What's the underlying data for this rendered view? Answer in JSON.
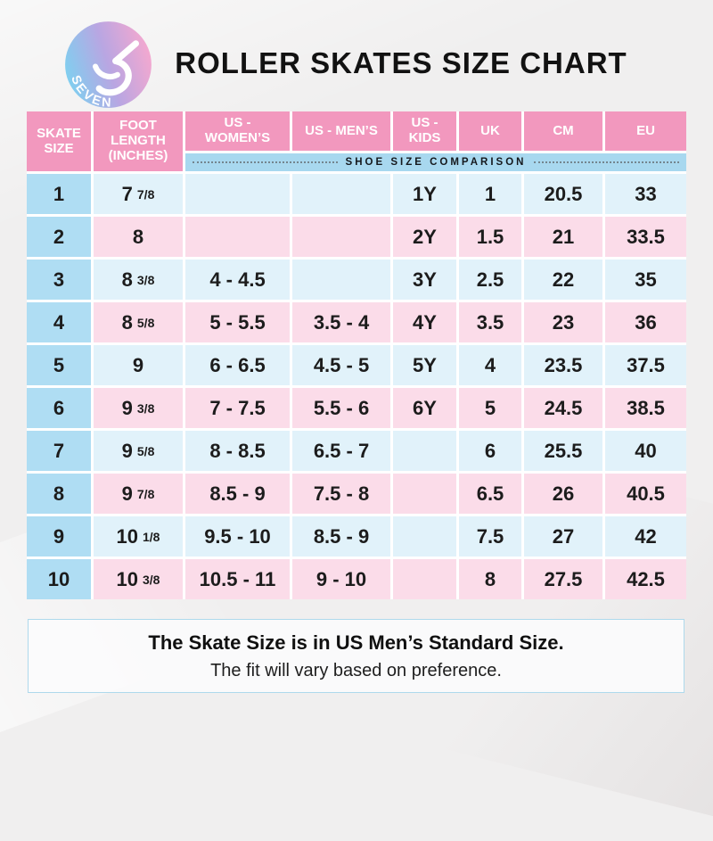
{
  "brand": {
    "logo_text": "SEVEN"
  },
  "header": {
    "title": "ROLLER SKATES SIZE CHART"
  },
  "chart_data": {
    "type": "table",
    "title": "ROLLER SKATES SIZE CHART",
    "columns": [
      "SKATE SIZE",
      "FOOT LENGTH (INCHES)",
      "US - WOMEN’S",
      "US - MEN’S",
      "US - KIDS",
      "UK",
      "CM",
      "EU"
    ],
    "comparison_label": "SHOE SIZE COMPARISON",
    "rows": [
      [
        "1",
        "7 7/8",
        "",
        "",
        "1Y",
        "1",
        "20.5",
        "33"
      ],
      [
        "2",
        "8",
        "",
        "",
        "2Y",
        "1.5",
        "21",
        "33.5"
      ],
      [
        "3",
        "8 3/8",
        "4 - 4.5",
        "",
        "3Y",
        "2.5",
        "22",
        "35"
      ],
      [
        "4",
        "8 5/8",
        "5 - 5.5",
        "3.5 - 4",
        "4Y",
        "3.5",
        "23",
        "36"
      ],
      [
        "5",
        "9",
        "6 - 6.5",
        "4.5 - 5",
        "5Y",
        "4",
        "23.5",
        "37.5"
      ],
      [
        "6",
        "9 3/8",
        "7 - 7.5",
        "5.5 - 6",
        "6Y",
        "5",
        "24.5",
        "38.5"
      ],
      [
        "7",
        "9 5/8",
        "8 - 8.5",
        "6.5 - 7",
        "",
        "6",
        "25.5",
        "40"
      ],
      [
        "8",
        "9 7/8",
        "8.5 - 9",
        "7.5 - 8",
        "",
        "6.5",
        "26",
        "40.5"
      ],
      [
        "9",
        "10 1/8",
        "9.5 - 10",
        "8.5 - 9",
        "",
        "7.5",
        "27",
        "42"
      ],
      [
        "10",
        "10 3/8",
        "10.5 - 11",
        "9 - 10",
        "",
        "8",
        "27.5",
        "42.5"
      ]
    ]
  },
  "footer": {
    "line1": "The Skate Size is in US Men’s Standard Size.",
    "line2": "The fit will vary based on preference."
  },
  "colors": {
    "header_pink": "#F298BE",
    "row_pink": "#FBDCE9",
    "row_blue": "#E1F2FA",
    "skate_size_column_blue": "#AFDDF3",
    "comparison_strip_blue": "#A8D8EF",
    "grid_line_white": "#FFFFFF",
    "text_black": "#1C1C1C",
    "background_gray": "#F0EFEF",
    "footer_border_blue": "#AED9EC",
    "logo_gradient": [
      "#7ED0F0",
      "#B9A6E2",
      "#F5A8CF"
    ]
  }
}
